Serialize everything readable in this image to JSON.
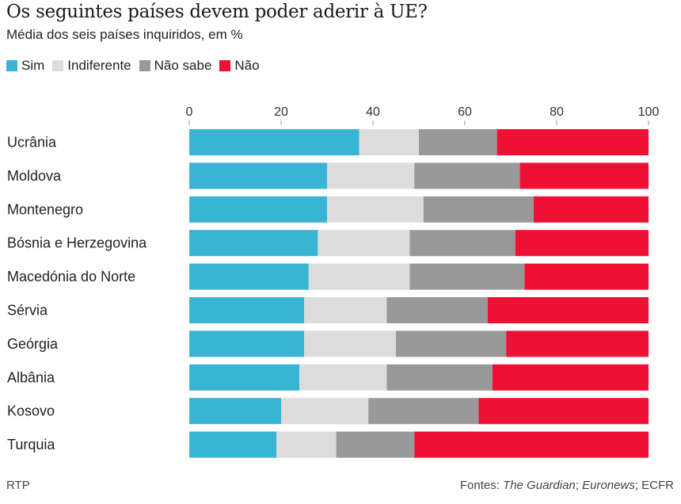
{
  "chart_data": {
    "type": "bar",
    "orientation": "horizontal",
    "stacked": true,
    "title": "Os seguintes países devem poder aderir à UE?",
    "subtitle": "Média dos seis países inquiridos, em %",
    "categories": [
      "Ucrânia",
      "Moldova",
      "Montenegro",
      "Bósnia e Herzegovina",
      "Macedónia do Norte",
      "Sérvia",
      "Geórgia",
      "Albânia",
      "Kosovo",
      "Turquia"
    ],
    "series": [
      {
        "name": "Sim",
        "color": "#3ab4d4",
        "values": [
          37,
          30,
          30,
          28,
          26,
          25,
          25,
          24,
          20,
          19
        ]
      },
      {
        "name": "Indiferente",
        "color": "#dcdcdc",
        "values": [
          13,
          19,
          21,
          20,
          22,
          18,
          20,
          19,
          19,
          13
        ]
      },
      {
        "name": "Não sabe",
        "color": "#999999",
        "values": [
          17,
          23,
          24,
          23,
          25,
          22,
          24,
          23,
          24,
          17
        ]
      },
      {
        "name": "Não",
        "color": "#ee1133",
        "values": [
          33,
          28,
          25,
          29,
          27,
          35,
          31,
          34,
          37,
          51
        ]
      }
    ],
    "xlim": [
      0,
      100
    ],
    "xticks": [
      "0",
      "20",
      "40",
      "60",
      "80",
      "100"
    ],
    "legend_position": "top-left",
    "grid": false
  },
  "footer": {
    "source_left": "RTP",
    "sources_label": "Fontes: ",
    "source1": "The Guardian",
    "sep1": "; ",
    "source2": "Euronews",
    "sep2": "; ECFR"
  }
}
